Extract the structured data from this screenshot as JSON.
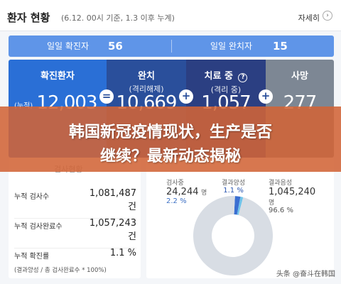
{
  "header": {
    "title": "환자 현황",
    "subtitle": "(6.12. 00시 기준, 1.3 이후 누계)",
    "detail_label": "자세히",
    "chevron": "›"
  },
  "daily": {
    "confirmed_label": "일일 확진자",
    "confirmed_value": "56",
    "released_label": "일일 완치자",
    "released_value": "15"
  },
  "stats": {
    "confirmed": {
      "label": "확진환자",
      "prefix": "(누적)",
      "value": "12,003"
    },
    "released": {
      "label": "완치",
      "sublabel": "(격리해제)",
      "value": "10,669"
    },
    "treating": {
      "label": "치료 중",
      "help": "?",
      "sublabel": "(격리 중)",
      "value": "1,057"
    },
    "deceased": {
      "label": "사망",
      "value": "277"
    },
    "ops": [
      "=",
      "+",
      "+",
      "+"
    ]
  },
  "banner": {
    "line1": "韩国新冠疫情现状，生产是否",
    "line2": "继续？最新动态揭秘"
  },
  "tests": {
    "section_label": "검사현황",
    "rows": [
      {
        "label": "누적 검사수",
        "value": "1,081,487",
        "unit": "건"
      },
      {
        "label": "누적 검사완료수",
        "value": "1,057,243",
        "unit": "건"
      },
      {
        "label": "누적 확진률",
        "value": "1.1 %"
      }
    ],
    "note": "(결과양성 / 총 검사완료수 * 100%)"
  },
  "donut": {
    "testing": {
      "label": "검사중",
      "value": "24,244",
      "unit": "명",
      "pct": "2.2 %"
    },
    "positive": {
      "label": "결과양성",
      "pct": "1.1 %"
    },
    "negative": {
      "label": "결과음성",
      "value": "1,045,240",
      "unit": "명",
      "pct": "96.6 %"
    }
  },
  "chart_data": {
    "type": "pie",
    "categories": [
      "검사중",
      "결과양성",
      "결과음성"
    ],
    "values": [
      2.2,
      1.1,
      96.6
    ],
    "colors": [
      "#3a6fd1",
      "#6fc3ea",
      "#d8dde4"
    ]
  },
  "watermark": "头条 @奋斗在韩国",
  "colors": {
    "accent": "#2a6fd6",
    "daily_bar": "#5f95e8",
    "banner": "#d26437"
  }
}
